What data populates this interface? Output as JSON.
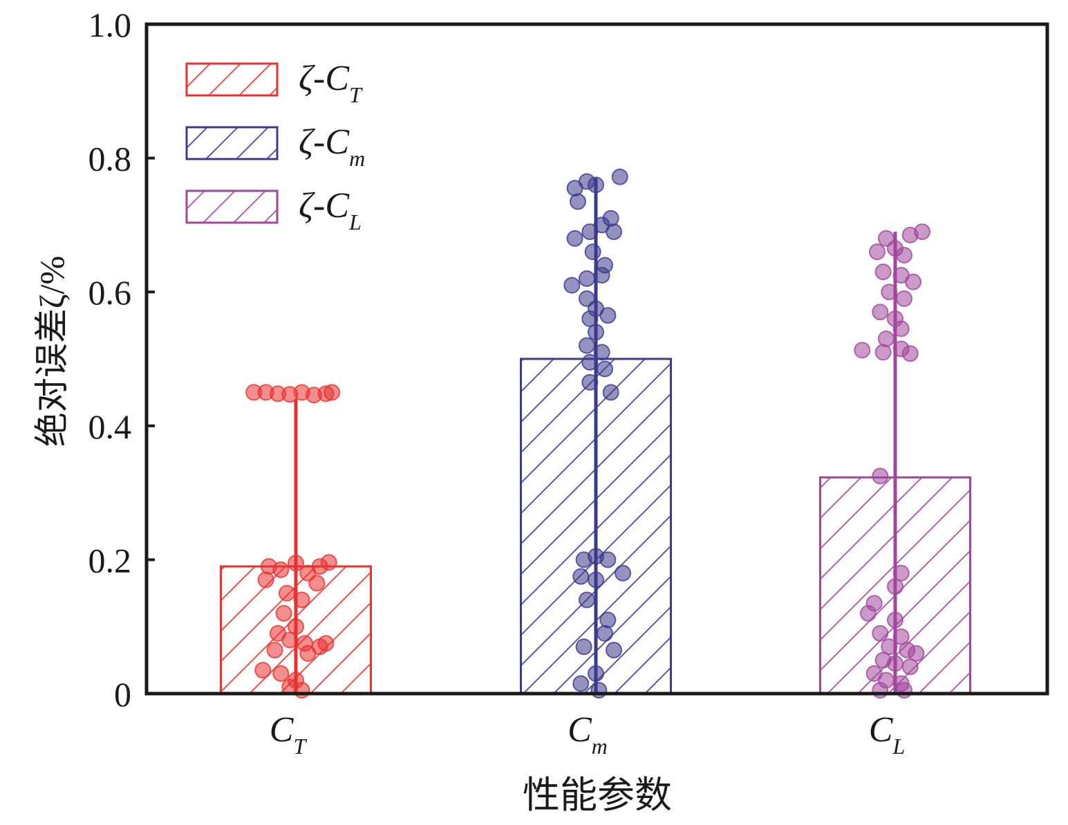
{
  "chart_data": {
    "type": "bar",
    "title": "",
    "xlabel": "性能参数",
    "ylabel": "绝对误差ζ/%",
    "ylim": [
      0,
      1.0
    ],
    "yticks": [
      "0",
      "0.2",
      "0.4",
      "0.6",
      "0.8",
      "1.0"
    ],
    "ytick_values": [
      0,
      0.2,
      0.4,
      0.6,
      0.8,
      1.0
    ],
    "legend_position": "top-left",
    "categories": [
      {
        "main": "C",
        "sub": "T"
      },
      {
        "main": "C",
        "sub": "m"
      },
      {
        "main": "C",
        "sub": "L"
      }
    ],
    "series": [
      {
        "name": "ζ-CT",
        "legend_prefix": "ζ-",
        "legend_main": "C",
        "legend_sub": "T",
        "color": "#e8322f",
        "bar_value": 0.19,
        "err_max": 0.44,
        "points": [
          [
            -0.14,
            0.45
          ],
          [
            -0.1,
            0.45
          ],
          [
            -0.06,
            0.448
          ],
          [
            -0.02,
            0.447
          ],
          [
            0.02,
            0.45
          ],
          [
            0.06,
            0.446
          ],
          [
            0.1,
            0.448
          ],
          [
            0.12,
            0.45
          ],
          [
            -0.09,
            0.19
          ],
          [
            -0.05,
            0.185
          ],
          [
            0.0,
            0.195
          ],
          [
            0.04,
            0.18
          ],
          [
            0.08,
            0.19
          ],
          [
            0.11,
            0.196
          ],
          [
            -0.1,
            0.17
          ],
          [
            0.07,
            0.165
          ],
          [
            -0.03,
            0.15
          ],
          [
            0.02,
            0.14
          ],
          [
            -0.04,
            0.12
          ],
          [
            0.0,
            0.1
          ],
          [
            -0.06,
            0.09
          ],
          [
            -0.02,
            0.08
          ],
          [
            0.03,
            0.075
          ],
          [
            0.08,
            0.07
          ],
          [
            0.1,
            0.075
          ],
          [
            -0.07,
            0.065
          ],
          [
            0.04,
            0.06
          ],
          [
            -0.11,
            0.035
          ],
          [
            -0.05,
            0.03
          ],
          [
            0.0,
            0.02
          ],
          [
            -0.02,
            0.01
          ],
          [
            0.02,
            0.005
          ]
        ]
      },
      {
        "name": "ζ-Cm",
        "legend_prefix": "ζ-",
        "legend_main": "C",
        "legend_sub": "m",
        "color": "#3c3a8c",
        "bar_value": 0.5,
        "err_max": 0.77,
        "points": [
          [
            -0.07,
            0.755
          ],
          [
            -0.03,
            0.765
          ],
          [
            0.0,
            0.76
          ],
          [
            0.08,
            0.772
          ],
          [
            -0.06,
            0.735
          ],
          [
            0.05,
            0.71
          ],
          [
            -0.07,
            0.68
          ],
          [
            -0.02,
            0.69
          ],
          [
            0.02,
            0.7
          ],
          [
            0.06,
            0.69
          ],
          [
            -0.01,
            0.66
          ],
          [
            0.03,
            0.64
          ],
          [
            -0.03,
            0.62
          ],
          [
            0.02,
            0.625
          ],
          [
            -0.08,
            0.61
          ],
          [
            -0.03,
            0.59
          ],
          [
            0.0,
            0.575
          ],
          [
            -0.02,
            0.56
          ],
          [
            0.04,
            0.565
          ],
          [
            0.0,
            0.54
          ],
          [
            -0.03,
            0.52
          ],
          [
            0.02,
            0.51
          ],
          [
            -0.02,
            0.495
          ],
          [
            0.03,
            0.485
          ],
          [
            -0.02,
            0.465
          ],
          [
            0.05,
            0.45
          ],
          [
            -0.04,
            0.2
          ],
          [
            0.0,
            0.205
          ],
          [
            0.04,
            0.2
          ],
          [
            -0.05,
            0.175
          ],
          [
            0.0,
            0.17
          ],
          [
            0.09,
            0.18
          ],
          [
            -0.03,
            0.14
          ],
          [
            0.04,
            0.11
          ],
          [
            0.03,
            0.09
          ],
          [
            -0.04,
            0.07
          ],
          [
            0.06,
            0.065
          ],
          [
            0.0,
            0.03
          ],
          [
            -0.05,
            0.015
          ],
          [
            0.01,
            0.005
          ]
        ]
      },
      {
        "name": "ζ-CL",
        "legend_prefix": "ζ-",
        "legend_main": "C",
        "legend_sub": "L",
        "color": "#a0479b",
        "bar_value": 0.323,
        "err_max": 0.69,
        "points": [
          [
            -0.03,
            0.68
          ],
          [
            0.05,
            0.685
          ],
          [
            0.09,
            0.69
          ],
          [
            -0.06,
            0.66
          ],
          [
            0.0,
            0.665
          ],
          [
            0.03,
            0.655
          ],
          [
            -0.04,
            0.63
          ],
          [
            0.02,
            0.625
          ],
          [
            0.06,
            0.615
          ],
          [
            -0.02,
            0.6
          ],
          [
            0.03,
            0.59
          ],
          [
            -0.05,
            0.57
          ],
          [
            0.0,
            0.56
          ],
          [
            0.02,
            0.545
          ],
          [
            -0.03,
            0.53
          ],
          [
            -0.11,
            0.513
          ],
          [
            -0.04,
            0.51
          ],
          [
            0.02,
            0.515
          ],
          [
            0.05,
            0.508
          ],
          [
            -0.05,
            0.325
          ],
          [
            0.02,
            0.18
          ],
          [
            0.0,
            0.16
          ],
          [
            -0.07,
            0.135
          ],
          [
            -0.09,
            0.12
          ],
          [
            0.0,
            0.11
          ],
          [
            -0.05,
            0.09
          ],
          [
            0.02,
            0.085
          ],
          [
            -0.02,
            0.07
          ],
          [
            0.04,
            0.065
          ],
          [
            0.07,
            0.06
          ],
          [
            -0.04,
            0.05
          ],
          [
            0.0,
            0.045
          ],
          [
            0.05,
            0.04
          ],
          [
            -0.07,
            0.03
          ],
          [
            -0.03,
            0.02
          ],
          [
            0.02,
            0.015
          ],
          [
            -0.05,
            0.005
          ],
          [
            0.03,
            0.005
          ]
        ]
      }
    ]
  }
}
